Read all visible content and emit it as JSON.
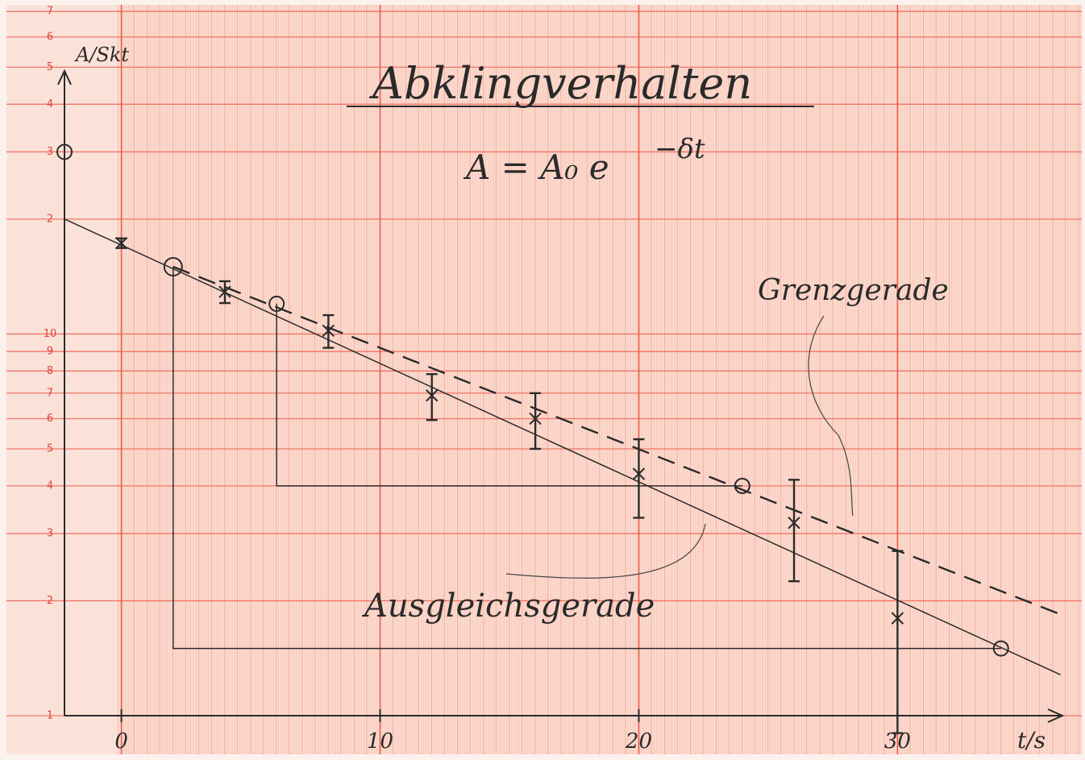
{
  "chart_data": {
    "type": "scatter",
    "title": "Abklingverhalten",
    "formula": {
      "base": "A = A₀ e",
      "exponent": "−δt"
    },
    "x_label": "t/s",
    "y_label": "A/Skt",
    "log_y": true,
    "grid": true,
    "xlim": [
      -2.2,
      36.5
    ],
    "ylim": [
      1,
      75
    ],
    "xticks": [
      0,
      10,
      20,
      30
    ],
    "yticks": [
      1,
      2,
      3,
      4,
      5,
      6,
      7,
      8,
      9,
      10,
      {
        "value": 20,
        "label": "2"
      },
      {
        "value": 30,
        "label": "3"
      },
      {
        "value": 40,
        "label": "4"
      },
      {
        "value": 50,
        "label": "5"
      },
      {
        "value": 60,
        "label": "6"
      },
      {
        "value": 70,
        "label": "7"
      }
    ],
    "measurements": {
      "x": [
        0,
        4,
        8,
        12,
        16,
        20,
        26,
        30
      ],
      "values": [
        17.3,
        12.9,
        10.2,
        6.9,
        6.0,
        4.3,
        3.2,
        1.8
      ],
      "errors": [
        0.5,
        0.85,
        1.0,
        0.95,
        1.0,
        1.0,
        0.95,
        0.9
      ]
    },
    "fit_points": {
      "x": [
        -2.2,
        2,
        6,
        24,
        34
      ],
      "values": [
        30,
        15,
        12,
        4,
        1.5
      ]
    },
    "lines": [
      {
        "label": "Ausgleichsgerade",
        "x": [
          -2.2,
          36.3
        ],
        "values": [
          20,
          1.28
        ],
        "dashed": false
      },
      {
        "label": "Grenzgerade",
        "x": [
          2,
          36.5
        ],
        "values": [
          15,
          1.82
        ],
        "dashed": true
      }
    ],
    "triangles": [
      {
        "x": [
          2,
          2,
          34
        ],
        "values": [
          15,
          1.5,
          1.5
        ]
      },
      {
        "x": [
          6,
          6,
          24
        ],
        "values": [
          12,
          4,
          4
        ]
      }
    ]
  }
}
